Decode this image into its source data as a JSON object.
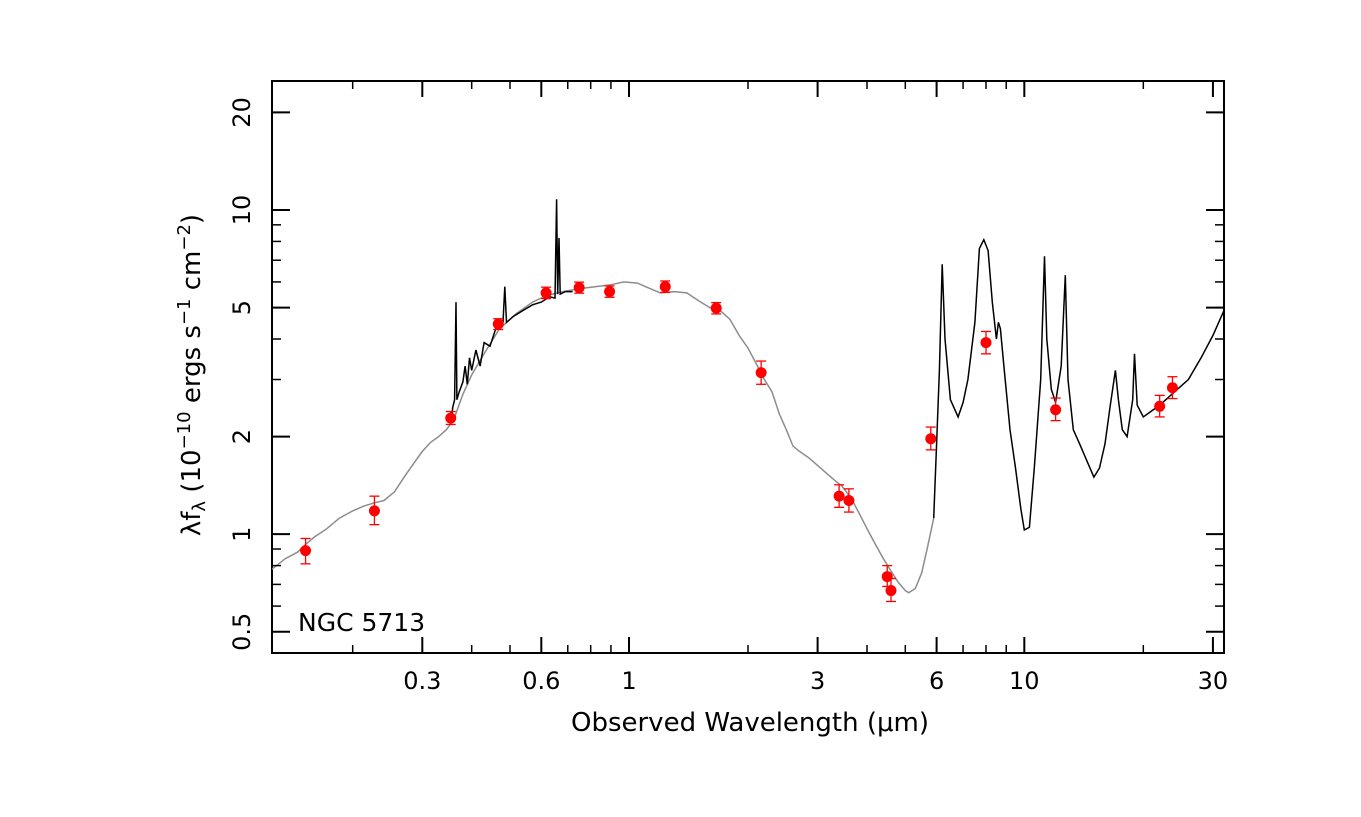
{
  "chart_data": {
    "type": "scatter",
    "annotation": "NGC 5713",
    "xlabel": "Observed Wavelength (μm)",
    "ylabel": {
      "pre": "λf",
      "sub": "λ",
      "mid": " (10",
      "exp1": "−10",
      "mid2": " ergs s",
      "exp2": "−1",
      "mid3": " cm",
      "exp3": "−2",
      "post": ")"
    },
    "xscale": "log",
    "yscale": "log",
    "xlim": [
      0.125,
      32
    ],
    "ylim": [
      0.43,
      25
    ],
    "x_ticks": [
      {
        "v": 0.3,
        "label": "0.3"
      },
      {
        "v": 0.6,
        "label": "0.6"
      },
      {
        "v": 1,
        "label": "1"
      },
      {
        "v": 3,
        "label": "3"
      },
      {
        "v": 6,
        "label": "6"
      },
      {
        "v": 10,
        "label": "10"
      },
      {
        "v": 30,
        "label": "30"
      }
    ],
    "y_ticks": [
      {
        "v": 0.5,
        "label": "0.5"
      },
      {
        "v": 1,
        "label": "1"
      },
      {
        "v": 2,
        "label": "2"
      },
      {
        "v": 5,
        "label": "5"
      },
      {
        "v": 10,
        "label": "10"
      },
      {
        "v": 20,
        "label": "20"
      }
    ],
    "colors": {
      "photometry": "#ff0000",
      "model": "#8c8c8c",
      "observed": "#000000"
    },
    "series": [
      {
        "kind": "photometry",
        "points": [
          {
            "x": 0.152,
            "y": 0.89,
            "lo": 0.81,
            "hi": 0.97
          },
          {
            "x": 0.227,
            "y": 1.18,
            "lo": 1.07,
            "hi": 1.31
          },
          {
            "x": 0.354,
            "y": 2.28,
            "lo": 2.18,
            "hi": 2.39
          },
          {
            "x": 0.467,
            "y": 4.45,
            "lo": 4.28,
            "hi": 4.62
          },
          {
            "x": 0.617,
            "y": 5.55,
            "lo": 5.33,
            "hi": 5.78
          },
          {
            "x": 0.748,
            "y": 5.76,
            "lo": 5.54,
            "hi": 5.99
          },
          {
            "x": 0.893,
            "y": 5.6,
            "lo": 5.38,
            "hi": 5.83
          },
          {
            "x": 1.235,
            "y": 5.8,
            "lo": 5.57,
            "hi": 6.04
          },
          {
            "x": 1.662,
            "y": 4.98,
            "lo": 4.78,
            "hi": 5.18
          },
          {
            "x": 2.159,
            "y": 3.15,
            "lo": 2.9,
            "hi": 3.42
          },
          {
            "x": 3.4,
            "y": 1.31,
            "lo": 1.21,
            "hi": 1.42
          },
          {
            "x": 3.6,
            "y": 1.27,
            "lo": 1.17,
            "hi": 1.38
          },
          {
            "x": 4.5,
            "y": 0.74,
            "lo": 0.69,
            "hi": 0.8
          },
          {
            "x": 4.6,
            "y": 0.67,
            "lo": 0.62,
            "hi": 0.73
          },
          {
            "x": 5.8,
            "y": 1.97,
            "lo": 1.82,
            "hi": 2.14
          },
          {
            "x": 8.0,
            "y": 3.9,
            "lo": 3.6,
            "hi": 4.22
          },
          {
            "x": 12.0,
            "y": 2.42,
            "lo": 2.24,
            "hi": 2.63
          },
          {
            "x": 22.0,
            "y": 2.48,
            "lo": 2.3,
            "hi": 2.68
          },
          {
            "x": 23.7,
            "y": 2.83,
            "lo": 2.62,
            "hi": 3.06
          }
        ]
      },
      {
        "kind": "model",
        "points": [
          [
            0.125,
            0.78
          ],
          [
            0.135,
            0.84
          ],
          [
            0.145,
            0.88
          ],
          [
            0.152,
            0.93
          ],
          [
            0.16,
            0.98
          ],
          [
            0.172,
            1.04
          ],
          [
            0.185,
            1.12
          ],
          [
            0.2,
            1.18
          ],
          [
            0.213,
            1.22
          ],
          [
            0.227,
            1.25
          ],
          [
            0.24,
            1.27
          ],
          [
            0.255,
            1.35
          ],
          [
            0.27,
            1.5
          ],
          [
            0.285,
            1.65
          ],
          [
            0.3,
            1.8
          ],
          [
            0.315,
            1.92
          ],
          [
            0.33,
            2.0
          ],
          [
            0.345,
            2.1
          ],
          [
            0.36,
            2.25
          ],
          [
            0.38,
            2.7
          ],
          [
            0.4,
            3.1
          ],
          [
            0.43,
            3.6
          ],
          [
            0.47,
            4.3
          ],
          [
            0.52,
            4.8
          ],
          [
            0.57,
            5.2
          ],
          [
            0.62,
            5.45
          ],
          [
            0.68,
            5.6
          ],
          [
            0.75,
            5.72
          ],
          [
            0.82,
            5.8
          ],
          [
            0.9,
            5.88
          ],
          [
            0.97,
            6.0
          ],
          [
            1.05,
            5.95
          ],
          [
            1.12,
            5.75
          ],
          [
            1.2,
            5.55
          ],
          [
            1.3,
            5.6
          ],
          [
            1.4,
            5.55
          ],
          [
            1.5,
            5.25
          ],
          [
            1.6,
            5.0
          ],
          [
            1.7,
            4.9
          ],
          [
            1.8,
            4.6
          ],
          [
            1.9,
            4.1
          ],
          [
            2.0,
            3.75
          ],
          [
            2.1,
            3.35
          ],
          [
            2.2,
            3.0
          ],
          [
            2.3,
            2.75
          ],
          [
            2.4,
            2.35
          ],
          [
            2.5,
            2.1
          ],
          [
            2.6,
            1.87
          ],
          [
            2.7,
            1.8
          ],
          [
            2.85,
            1.72
          ],
          [
            3.0,
            1.63
          ],
          [
            3.2,
            1.52
          ],
          [
            3.35,
            1.45
          ],
          [
            3.45,
            1.41
          ],
          [
            3.55,
            1.35
          ],
          [
            3.7,
            1.25
          ],
          [
            3.85,
            1.14
          ],
          [
            4.0,
            1.04
          ],
          [
            4.2,
            0.93
          ],
          [
            4.4,
            0.84
          ],
          [
            4.6,
            0.77
          ],
          [
            4.8,
            0.71
          ],
          [
            5.0,
            0.67
          ],
          [
            5.1,
            0.66
          ],
          [
            5.3,
            0.68
          ],
          [
            5.5,
            0.76
          ],
          [
            5.7,
            0.92
          ],
          [
            5.9,
            1.12
          ]
        ]
      },
      {
        "kind": "observed",
        "segments": [
          [
            [
              0.355,
              2.2
            ],
            [
              0.358,
              2.45
            ],
            [
              0.362,
              2.6
            ],
            [
              0.365,
              5.2
            ],
            [
              0.367,
              2.6
            ],
            [
              0.372,
              2.75
            ],
            [
              0.38,
              2.95
            ],
            [
              0.385,
              3.3
            ],
            [
              0.39,
              2.9
            ],
            [
              0.395,
              3.5
            ],
            [
              0.4,
              3.2
            ],
            [
              0.41,
              3.7
            ],
            [
              0.42,
              3.3
            ],
            [
              0.43,
              3.9
            ],
            [
              0.445,
              3.8
            ],
            [
              0.46,
              4.3
            ],
            [
              0.48,
              4.5
            ],
            [
              0.485,
              5.8
            ],
            [
              0.49,
              4.5
            ],
            [
              0.51,
              4.7
            ],
            [
              0.54,
              4.9
            ],
            [
              0.57,
              5.1
            ],
            [
              0.6,
              5.2
            ],
            [
              0.63,
              5.4
            ],
            [
              0.65,
              5.35
            ],
            [
              0.656,
              10.8
            ],
            [
              0.66,
              5.5
            ],
            [
              0.665,
              8.2
            ],
            [
              0.67,
              5.5
            ],
            [
              0.69,
              5.6
            ],
            [
              0.72,
              5.6
            ]
          ],
          [
            [
              5.9,
              1.12
            ],
            [
              6.0,
              1.9
            ],
            [
              6.1,
              3.2
            ],
            [
              6.2,
              6.8
            ],
            [
              6.3,
              4.0
            ],
            [
              6.5,
              2.6
            ],
            [
              6.8,
              2.3
            ],
            [
              7.0,
              2.55
            ],
            [
              7.2,
              3.0
            ],
            [
              7.5,
              4.5
            ],
            [
              7.7,
              7.6
            ],
            [
              7.9,
              8.1
            ],
            [
              8.1,
              7.5
            ],
            [
              8.3,
              5.2
            ],
            [
              8.5,
              4.0
            ],
            [
              8.6,
              4.5
            ],
            [
              8.7,
              4.3
            ],
            [
              8.9,
              3.2
            ],
            [
              9.2,
              2.1
            ],
            [
              9.5,
              1.6
            ],
            [
              9.8,
              1.2
            ],
            [
              10.0,
              1.03
            ],
            [
              10.3,
              1.05
            ],
            [
              10.6,
              1.6
            ],
            [
              11.0,
              3.0
            ],
            [
              11.25,
              7.2
            ],
            [
              11.4,
              4.0
            ],
            [
              11.7,
              2.8
            ],
            [
              12.0,
              2.55
            ],
            [
              12.4,
              3.3
            ],
            [
              12.7,
              6.3
            ],
            [
              12.9,
              3.0
            ],
            [
              13.3,
              2.1
            ],
            [
              13.8,
              1.9
            ],
            [
              14.5,
              1.65
            ],
            [
              15.0,
              1.5
            ],
            [
              15.5,
              1.6
            ],
            [
              16.0,
              1.9
            ],
            [
              16.5,
              2.5
            ],
            [
              17.0,
              3.2
            ],
            [
              17.3,
              2.6
            ],
            [
              17.7,
              2.1
            ],
            [
              18.2,
              2.0
            ],
            [
              18.8,
              2.6
            ],
            [
              19.0,
              3.6
            ],
            [
              19.3,
              2.5
            ],
            [
              20,
              2.3
            ],
            [
              21,
              2.4
            ],
            [
              22,
              2.5
            ],
            [
              24,
              2.75
            ],
            [
              26,
              3.0
            ],
            [
              28,
              3.5
            ],
            [
              30,
              4.1
            ],
            [
              32,
              4.9
            ]
          ]
        ]
      }
    ]
  }
}
